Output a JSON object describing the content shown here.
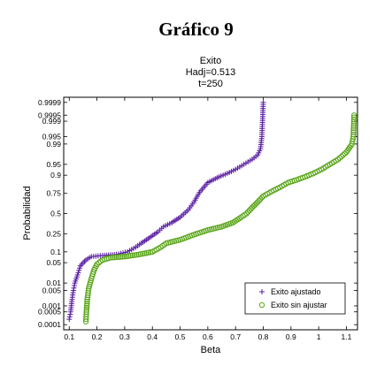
{
  "figure_title": "Gráfico 9",
  "chart_data": {
    "type": "scatter",
    "title": "Exito",
    "subtitle_lines": [
      "Hadj=0.513",
      "t=250"
    ],
    "xlabel": "Beta",
    "ylabel": "Probabilidad",
    "y_scale": "normal-probability",
    "xlim": [
      0.08,
      1.14
    ],
    "ylim": [
      5e-05,
      0.99995
    ],
    "x_ticks": [
      0.1,
      0.2,
      0.3,
      0.4,
      0.5,
      0.6,
      0.7,
      0.8,
      0.9,
      1,
      1.1
    ],
    "x_tick_labels": [
      "0.1",
      "0.2",
      "0.3",
      "0.4",
      "0.5",
      "0.6",
      "0.7",
      "0.8",
      "0.9",
      "1",
      "1.1"
    ],
    "y_ticks": [
      0.0001,
      0.0005,
      0.001,
      0.005,
      0.01,
      0.05,
      0.1,
      0.25,
      0.5,
      0.75,
      0.9,
      0.95,
      0.99,
      0.995,
      0.999,
      0.9995,
      0.9999
    ],
    "y_tick_labels": [
      "0.0001",
      "0.0005",
      "0.001",
      "0.005",
      "0.01",
      "0.05",
      "0.1",
      "0.25",
      "0.5",
      "0.75",
      "0.9",
      "0.95",
      "0.99",
      "0.995",
      "0.999",
      "0.9995",
      "0.9999"
    ],
    "legend_position": "bottom-right",
    "series": [
      {
        "name": "Exito ajustado",
        "marker": "plus",
        "color": "#5b1fa3",
        "points": [
          [
            0.1,
            0.0002
          ],
          [
            0.105,
            0.0005
          ],
          [
            0.11,
            0.002
          ],
          [
            0.115,
            0.005
          ],
          [
            0.12,
            0.01
          ],
          [
            0.13,
            0.02
          ],
          [
            0.14,
            0.04
          ],
          [
            0.16,
            0.06
          ],
          [
            0.18,
            0.075
          ],
          [
            0.22,
            0.08
          ],
          [
            0.27,
            0.085
          ],
          [
            0.31,
            0.1
          ],
          [
            0.34,
            0.13
          ],
          [
            0.36,
            0.16
          ],
          [
            0.39,
            0.21
          ],
          [
            0.42,
            0.27
          ],
          [
            0.44,
            0.33
          ],
          [
            0.47,
            0.38
          ],
          [
            0.5,
            0.45
          ],
          [
            0.53,
            0.55
          ],
          [
            0.55,
            0.65
          ],
          [
            0.57,
            0.76
          ],
          [
            0.6,
            0.85
          ],
          [
            0.64,
            0.89
          ],
          [
            0.67,
            0.91
          ],
          [
            0.7,
            0.93
          ],
          [
            0.73,
            0.95
          ],
          [
            0.76,
            0.965
          ],
          [
            0.78,
            0.975
          ],
          [
            0.79,
            0.985
          ],
          [
            0.795,
            0.995
          ],
          [
            0.8,
            0.9999
          ]
        ]
      },
      {
        "name": "Exito sin ajustar",
        "marker": "circle",
        "color": "#5aa619",
        "points": [
          [
            0.16,
            0.00015
          ],
          [
            0.162,
            0.0005
          ],
          [
            0.165,
            0.002
          ],
          [
            0.17,
            0.006
          ],
          [
            0.18,
            0.015
          ],
          [
            0.19,
            0.03
          ],
          [
            0.2,
            0.045
          ],
          [
            0.22,
            0.06
          ],
          [
            0.25,
            0.07
          ],
          [
            0.3,
            0.075
          ],
          [
            0.35,
            0.085
          ],
          [
            0.4,
            0.1
          ],
          [
            0.43,
            0.13
          ],
          [
            0.45,
            0.16
          ],
          [
            0.5,
            0.19
          ],
          [
            0.55,
            0.24
          ],
          [
            0.6,
            0.29
          ],
          [
            0.65,
            0.33
          ],
          [
            0.69,
            0.38
          ],
          [
            0.72,
            0.45
          ],
          [
            0.74,
            0.5
          ],
          [
            0.76,
            0.58
          ],
          [
            0.78,
            0.65
          ],
          [
            0.8,
            0.72
          ],
          [
            0.83,
            0.77
          ],
          [
            0.86,
            0.81
          ],
          [
            0.89,
            0.85
          ],
          [
            0.92,
            0.87
          ],
          [
            0.95,
            0.89
          ],
          [
            0.98,
            0.91
          ],
          [
            1.01,
            0.93
          ],
          [
            1.04,
            0.95
          ],
          [
            1.07,
            0.965
          ],
          [
            1.1,
            0.98
          ],
          [
            1.12,
            0.99
          ],
          [
            1.125,
            0.995
          ],
          [
            1.128,
            0.9995
          ]
        ]
      }
    ]
  }
}
